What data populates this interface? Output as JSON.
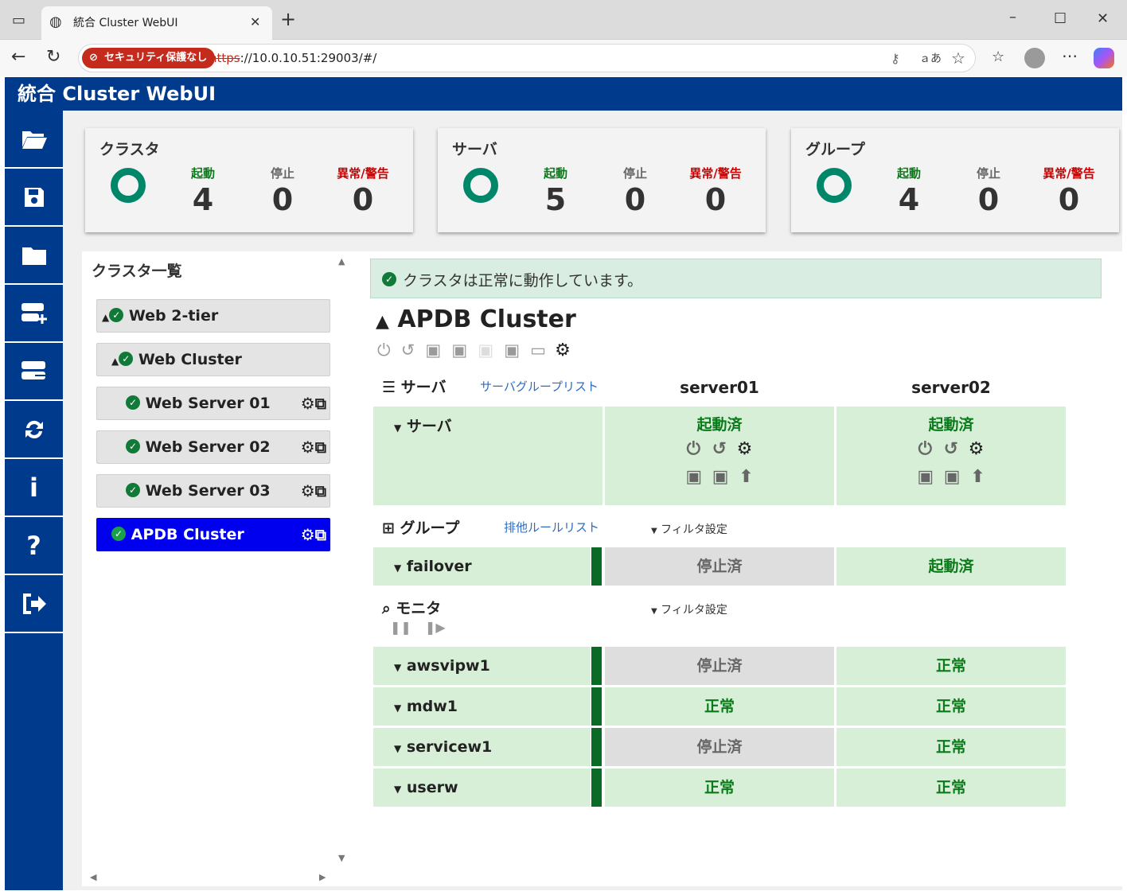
{
  "browser": {
    "tab_title": "統合 Cluster WebUI",
    "security_label": "セキュリティ保護なし",
    "url_scheme": "https",
    "url_rest": "://10.0.10.51:29003/#/"
  },
  "app": {
    "title": "統合 Cluster WebUI"
  },
  "stats": [
    {
      "title": "クラスタ",
      "labels": [
        "起動",
        "停止",
        "異常/警告"
      ],
      "values": [
        "4",
        "0",
        "0"
      ]
    },
    {
      "title": "サーバ",
      "labels": [
        "起動",
        "停止",
        "異常/警告"
      ],
      "values": [
        "5",
        "0",
        "0"
      ]
    },
    {
      "title": "グループ",
      "labels": [
        "起動",
        "停止",
        "異常/警告"
      ],
      "values": [
        "4",
        "0",
        "0"
      ]
    }
  ],
  "cluster_list": {
    "title": "クラスタ一覧",
    "items": [
      "Web 2-tier",
      "Web Cluster",
      "Web Server 01",
      "Web Server 02",
      "Web Server 03",
      "APDB Cluster"
    ]
  },
  "status_message": "クラスタは正常に動作しています。",
  "cluster": {
    "name": "APDB Cluster",
    "server_section": "サーバ",
    "server_group_link": "サーバグループリスト",
    "servers": [
      "server01",
      "server02"
    ],
    "server_row_label": "サーバ",
    "server_states": [
      "起動済",
      "起動済"
    ],
    "group_section": "グループ",
    "exclusive_rule_link": "排他ルールリスト",
    "filter_label": "フィルタ設定",
    "groups": [
      {
        "name": "failover",
        "states": [
          "停止済",
          "起動済"
        ]
      }
    ],
    "monitor_section": "モニタ",
    "monitors": [
      {
        "name": "awsvipw1",
        "states": [
          "停止済",
          "正常"
        ]
      },
      {
        "name": "mdw1",
        "states": [
          "正常",
          "正常"
        ]
      },
      {
        "name": "servicew1",
        "states": [
          "停止済",
          "正常"
        ]
      },
      {
        "name": "userw",
        "states": [
          "正常",
          "正常"
        ]
      }
    ]
  },
  "colors": {
    "header": "#003a8c",
    "ok_green": "#127a38",
    "state_bg": "#d6efd6",
    "stop_bg": "#dedede",
    "selected": "#0000ee"
  }
}
